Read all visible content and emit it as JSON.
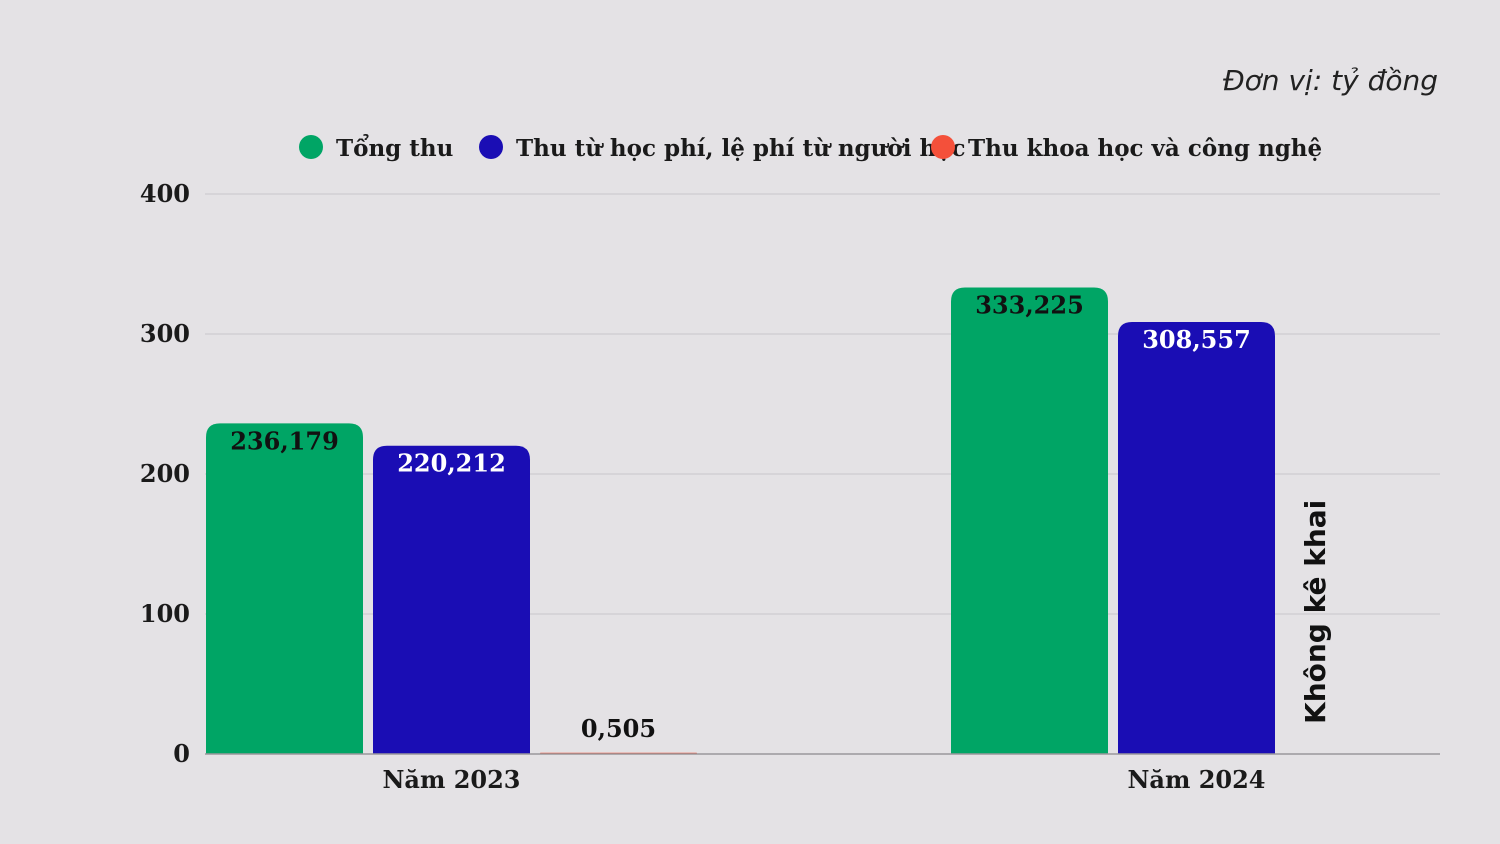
{
  "unit_label": "Đơn vị: tỷ đồng",
  "chart_data": {
    "type": "bar",
    "categories": [
      "Năm 2023",
      "Năm 2024"
    ],
    "series": [
      {
        "name": "Tổng thu",
        "color": "#00a565",
        "values": [
          236.179,
          333.225
        ],
        "labels": [
          "236,179",
          "333,225"
        ],
        "label_color": "#111111"
      },
      {
        "name": "Thu từ học phí, lệ phí từ người học",
        "color": "#1a0db4",
        "values": [
          220.212,
          308.557
        ],
        "labels": [
          "220,212",
          "308,557"
        ],
        "label_color": "#ffffff"
      },
      {
        "name": "Thu khoa học và công nghệ",
        "color": "#f4503a",
        "values": [
          0.505,
          null
        ],
        "labels": [
          "0,505",
          null
        ],
        "label_color": "#111111"
      }
    ],
    "missing_note": "Không kê khai",
    "yticks": [
      "0",
      "100",
      "200",
      "300",
      "400"
    ],
    "ylim": [
      0,
      400
    ],
    "grid": true,
    "legend": "top"
  }
}
